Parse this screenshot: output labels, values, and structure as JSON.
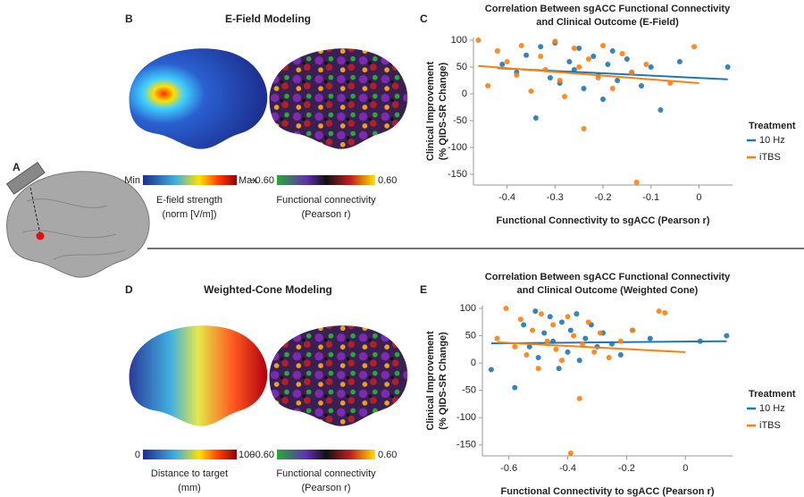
{
  "panel_labels": [
    "A",
    "B",
    "C",
    "D",
    "E"
  ],
  "e_field": {
    "title": "E-Field Modeling",
    "scale_min": "Min",
    "scale_max": "Max",
    "caption": [
      "E-field strength",
      "(norm [V/m])"
    ],
    "fc_min": "−0.60",
    "fc_max": "0.60",
    "fc_caption": [
      "Functional connectivity",
      "(Pearson r)"
    ]
  },
  "weighted_cone": {
    "title": "Weighted-Cone Modeling",
    "scale_min": "0",
    "scale_max": "100",
    "caption": [
      "Distance to target",
      "(mm)"
    ],
    "fc_min": "−0.60",
    "fc_max": "0.60",
    "fc_caption": [
      "Functional connectivity",
      "(Pearson r)"
    ]
  },
  "chart_data": [
    {
      "type": "scatter",
      "title": [
        "Correlation Between sgACC Functional Connectivity",
        "and Clinical Outcome (E-Field)"
      ],
      "xlabel": "Functional Connectivity to sgACC (Pearson r)",
      "ylabel": [
        "Clinical Improvement",
        "(% QIDS-SR Change)"
      ],
      "xlim": [
        -0.47,
        0.07
      ],
      "ylim": [
        -170,
        105
      ],
      "xticks": [
        -0.4,
        -0.3,
        -0.2,
        -0.1,
        0
      ],
      "yticks": [
        100,
        50,
        0,
        -50,
        -100,
        -150
      ],
      "legend_title": "Treatment",
      "legend": "right",
      "series": [
        {
          "name": "10 Hz",
          "color": "#1f77b4",
          "x": [
            -0.41,
            -0.38,
            -0.36,
            -0.34,
            -0.33,
            -0.31,
            -0.3,
            -0.29,
            -0.27,
            -0.26,
            -0.25,
            -0.24,
            -0.22,
            -0.21,
            -0.2,
            -0.19,
            -0.18,
            -0.17,
            -0.15,
            -0.14,
            -0.12,
            -0.1,
            -0.08,
            -0.04,
            0.06
          ],
          "y": [
            55,
            40,
            72,
            -45,
            88,
            30,
            95,
            20,
            60,
            45,
            85,
            10,
            70,
            35,
            -10,
            55,
            80,
            25,
            65,
            40,
            15,
            50,
            -30,
            60,
            50
          ],
          "trend": {
            "x": [
              -0.42,
              0.06
            ],
            "y": [
              48,
              27
            ]
          }
        },
        {
          "name": "iTBS",
          "color": "#ff7f0e",
          "x": [
            -0.46,
            -0.44,
            -0.42,
            -0.4,
            -0.38,
            -0.37,
            -0.35,
            -0.33,
            -0.32,
            -0.3,
            -0.29,
            -0.28,
            -0.26,
            -0.25,
            -0.24,
            -0.23,
            -0.21,
            -0.2,
            -0.18,
            -0.16,
            -0.14,
            -0.13,
            -0.11,
            -0.06,
            -0.01
          ],
          "y": [
            100,
            15,
            80,
            60,
            35,
            90,
            5,
            70,
            45,
            98,
            25,
            -5,
            85,
            50,
            -65,
            65,
            30,
            90,
            10,
            75,
            40,
            -165,
            55,
            20,
            88
          ],
          "trend": {
            "x": [
              -0.46,
              0.0
            ],
            "y": [
              52,
              20
            ]
          }
        }
      ]
    },
    {
      "type": "scatter",
      "title": [
        "Correlation Between sgACC Functional Connectivity",
        "and Clinical Outcome (Weighted Cone)"
      ],
      "xlabel": "Functional Connectivity to sgACC (Pearson r)",
      "ylabel": [
        "Clinical Improvement",
        "(% QIDS-SR Change)"
      ],
      "xlim": [
        -0.69,
        0.16
      ],
      "ylim": [
        -170,
        105
      ],
      "xticks": [
        -0.6,
        -0.4,
        -0.2,
        0
      ],
      "yticks": [
        100,
        50,
        0,
        -50,
        -100,
        -150
      ],
      "legend_title": "Treatment",
      "legend": "right",
      "series": [
        {
          "name": "10 Hz",
          "color": "#1f77b4",
          "x": [
            -0.66,
            -0.58,
            -0.55,
            -0.53,
            -0.51,
            -0.5,
            -0.48,
            -0.46,
            -0.45,
            -0.43,
            -0.42,
            -0.4,
            -0.39,
            -0.37,
            -0.36,
            -0.34,
            -0.32,
            -0.3,
            -0.28,
            -0.25,
            -0.22,
            -0.18,
            -0.12,
            0.05,
            0.14
          ],
          "y": [
            -12,
            -45,
            70,
            30,
            95,
            10,
            55,
            85,
            40,
            -10,
            75,
            20,
            60,
            90,
            5,
            45,
            70,
            30,
            55,
            35,
            15,
            60,
            45,
            40,
            50
          ],
          "trend": {
            "x": [
              -0.66,
              0.14
            ],
            "y": [
              36,
              40
            ]
          }
        },
        {
          "name": "iTBS",
          "color": "#ff7f0e",
          "x": [
            -0.64,
            -0.61,
            -0.58,
            -0.56,
            -0.54,
            -0.52,
            -0.5,
            -0.49,
            -0.47,
            -0.45,
            -0.44,
            -0.42,
            -0.4,
            -0.39,
            -0.38,
            -0.36,
            -0.35,
            -0.33,
            -0.31,
            -0.29,
            -0.26,
            -0.22,
            -0.18,
            -0.09,
            -0.07
          ],
          "y": [
            45,
            100,
            30,
            80,
            15,
            60,
            -10,
            90,
            40,
            70,
            25,
            5,
            85,
            -165,
            50,
            -65,
            35,
            75,
            20,
            55,
            10,
            40,
            60,
            95,
            92
          ],
          "trend": {
            "x": [
              -0.64,
              0.0
            ],
            "y": [
              38,
              20
            ]
          }
        }
      ]
    }
  ]
}
